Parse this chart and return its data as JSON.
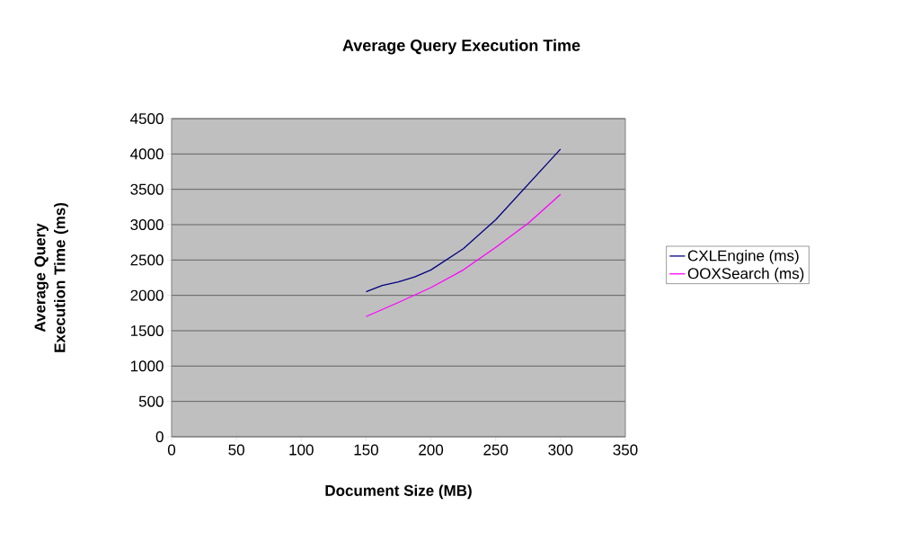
{
  "chart_data": {
    "type": "line",
    "title": "Average Query Execution Time",
    "xlabel": "Document Size (MB)",
    "ylabel": "Average Query Execution Time (ms)",
    "xlim": [
      0,
      350
    ],
    "xticks": [
      0,
      50,
      100,
      150,
      200,
      250,
      300,
      350
    ],
    "ylim": [
      0,
      4500
    ],
    "yticks": [
      0,
      500,
      1000,
      1500,
      2000,
      2500,
      3000,
      3500,
      4000,
      4500
    ],
    "grid": "y",
    "legend": "right",
    "marker": "none",
    "line_style": "solid",
    "series": [
      {
        "name": "CXLEngine (ms)",
        "color": "#000080",
        "x": [
          150,
          162.5,
          175,
          187.5,
          200,
          225,
          250,
          275,
          300
        ],
        "values": [
          2050,
          2140,
          2190,
          2260,
          2360,
          2660,
          3070,
          3570,
          4070
        ]
      },
      {
        "name": "OOXSearch (ms)",
        "color": "#ff00ff",
        "x": [
          150,
          175,
          200,
          225,
          250,
          275,
          300
        ],
        "values": [
          1700,
          1900,
          2110,
          2360,
          2680,
          3020,
          3430
        ]
      }
    ]
  }
}
